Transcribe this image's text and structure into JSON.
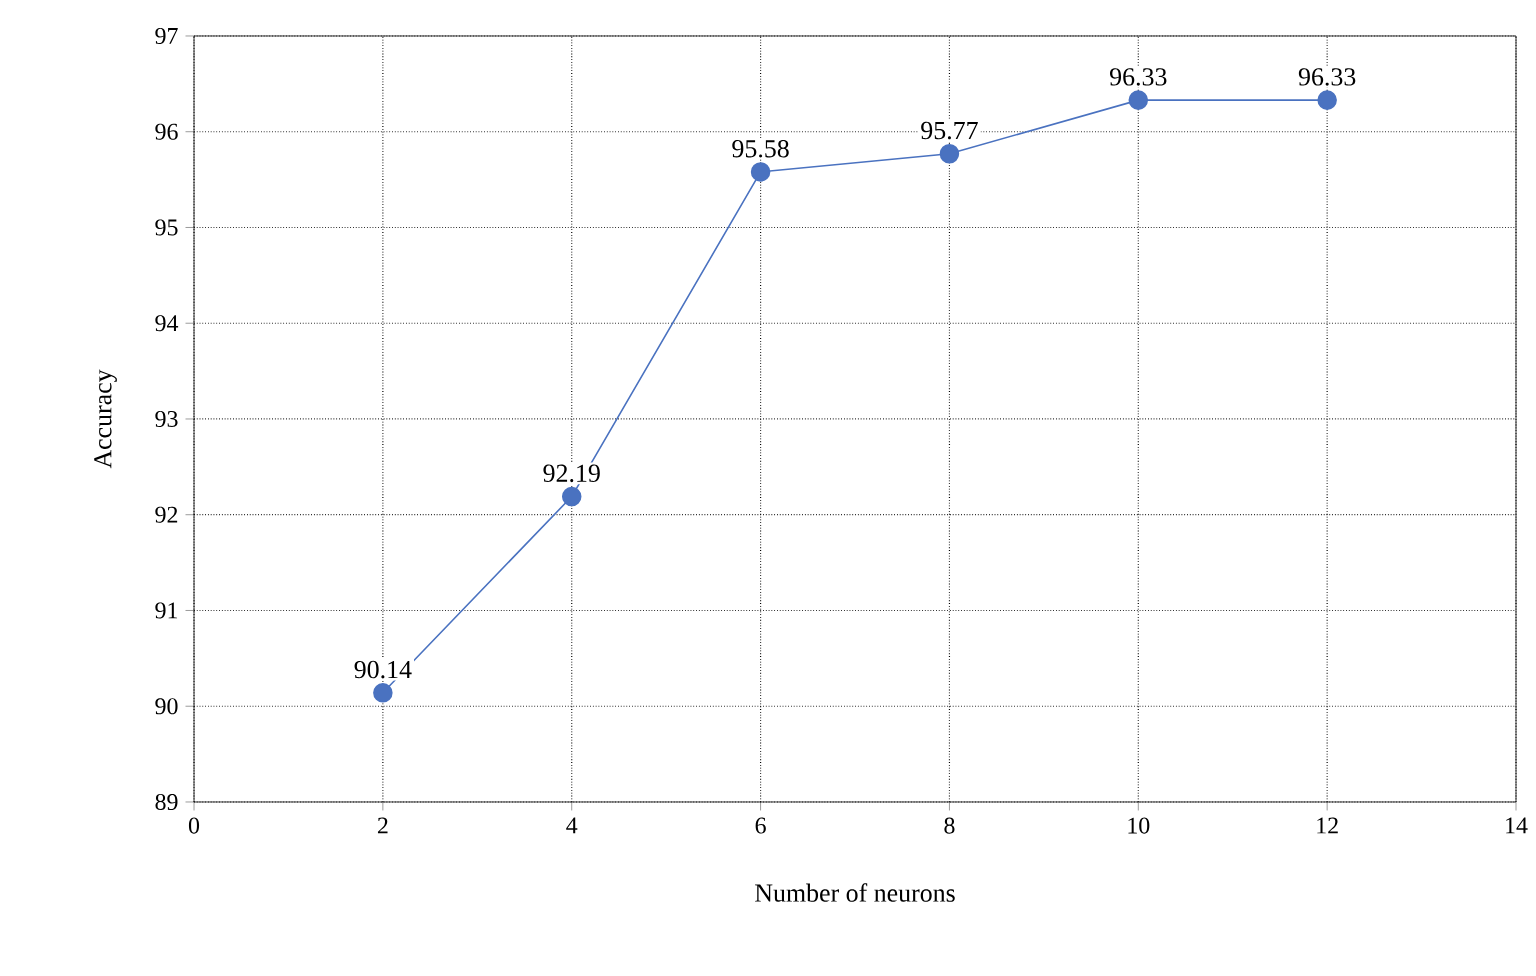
{
  "chart_data": {
    "type": "line",
    "xlabel": "Number of neurons",
    "ylabel": "Accuracy",
    "x": [
      2,
      4,
      6,
      8,
      10,
      12
    ],
    "values": [
      90.14,
      92.19,
      95.58,
      95.77,
      96.33,
      96.33
    ],
    "color": "#4a72c0",
    "marker": "circle",
    "line_style": "solid",
    "data_labels": true,
    "grid": true,
    "xlim": [
      0,
      14
    ],
    "xticks": [
      0,
      2,
      4,
      6,
      8,
      10,
      12,
      14
    ],
    "ylim": [
      89,
      97
    ],
    "yticks": [
      89,
      90,
      91,
      92,
      93,
      94,
      95,
      96,
      97
    ]
  }
}
